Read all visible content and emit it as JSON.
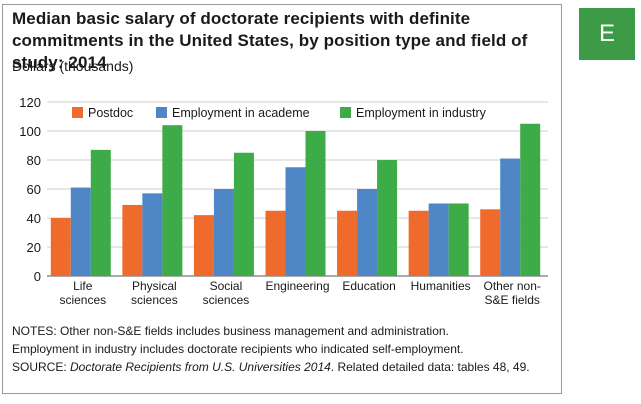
{
  "badge": {
    "label": "E",
    "color": "#3d9b47"
  },
  "chart_data": {
    "type": "bar",
    "title": "Median basic salary of doctorate recipients with definite commitments in the United States, by position type and field of study: 2014",
    "ylabel": "Dollars (thousands)",
    "xlabel": "",
    "ylim": [
      0,
      120
    ],
    "yticks": [
      0,
      20,
      40,
      60,
      80,
      100,
      120
    ],
    "grid": true,
    "legend_position": "top",
    "categories": [
      [
        "Life",
        "sciences"
      ],
      [
        "Physical",
        "sciences"
      ],
      [
        "Social",
        "sciences"
      ],
      [
        "Engineering"
      ],
      [
        "Education"
      ],
      [
        "Humanities"
      ],
      [
        "Other non-",
        "S&E fields"
      ]
    ],
    "series": [
      {
        "name": "Postdoc",
        "color": "#ee6b2d",
        "values": [
          40,
          49,
          42,
          45,
          45,
          45,
          46
        ]
      },
      {
        "name": "Employment in academe",
        "color": "#4f86c6",
        "values": [
          61,
          57,
          60,
          75,
          60,
          50,
          81
        ]
      },
      {
        "name": "Employment in industry",
        "color": "#3dab48",
        "values": [
          87,
          104,
          85,
          100,
          80,
          50,
          105
        ]
      }
    ]
  },
  "notes": {
    "line1": "NOTES: Other non-S&E fields includes business management and administration.",
    "line2": "Employment in industry includes doctorate recipients who indicated self-employment.",
    "source_prefix": "SOURCE: ",
    "source_title": "Doctorate Recipients from U.S. Universities 2014",
    "source_suffix": ". Related detailed data: tables 48, 49."
  }
}
